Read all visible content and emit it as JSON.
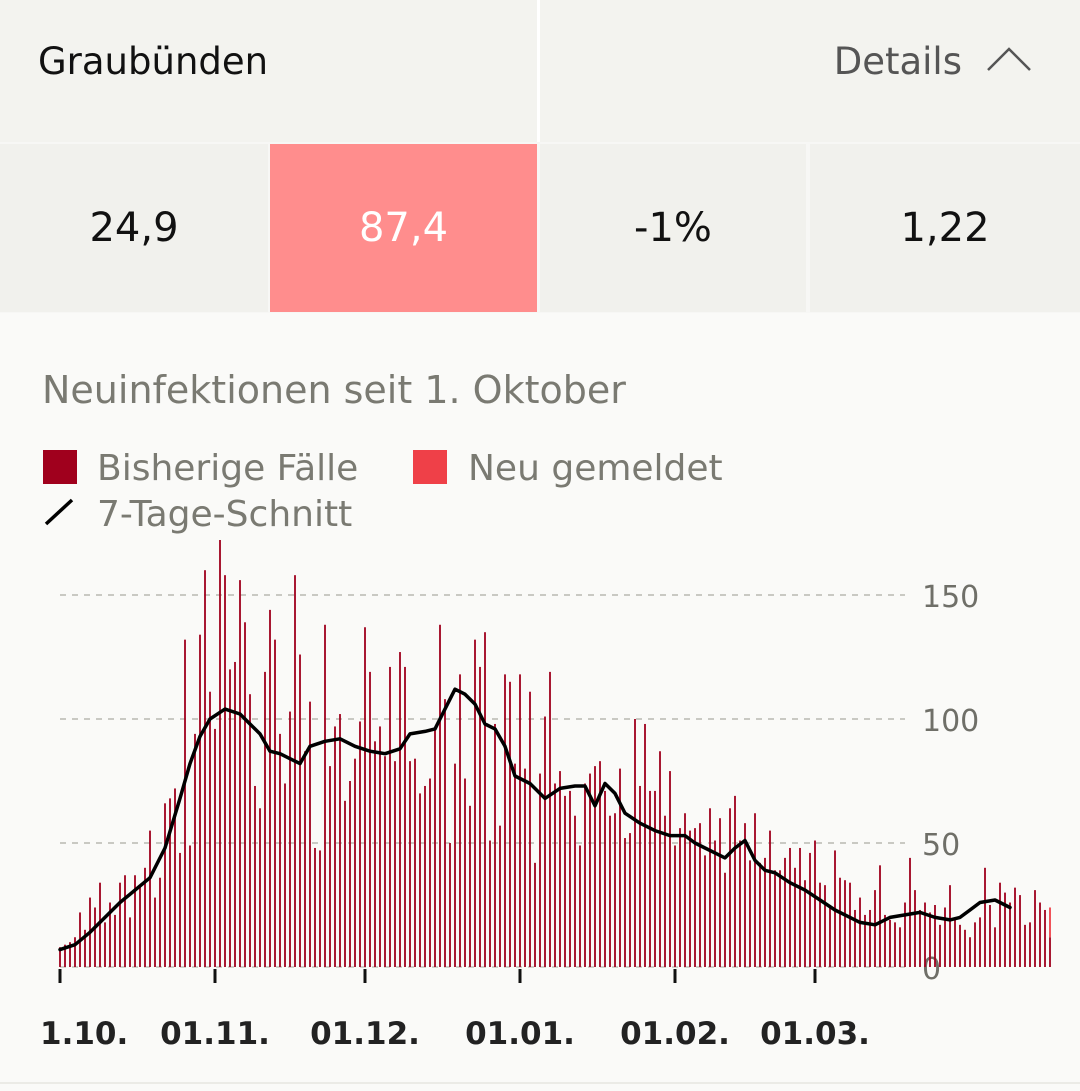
{
  "header": {
    "region": "Graubünden",
    "details_label": "Details"
  },
  "metrics": [
    {
      "value": "24,9",
      "highlight": false
    },
    {
      "value": "87,4",
      "highlight": true,
      "color": "#ff8d8d"
    },
    {
      "value": "-1%",
      "highlight": false
    },
    {
      "value": "1,22",
      "highlight": false
    }
  ],
  "icons": {
    "details_toggle": "chevron-up-icon"
  },
  "colors": {
    "bars_existing": "#a0001d",
    "bars_new": "#ef4048",
    "average_line": "#000000"
  },
  "chart_data": {
    "type": "bar",
    "title": "Neuinfektionen seit 1. Oktober",
    "legend": [
      {
        "label": "Bisherige Fälle",
        "kind": "bar",
        "color": "#a0001d"
      },
      {
        "label": "Neu gemeldet",
        "kind": "bar",
        "color": "#ef4048"
      },
      {
        "label": "7-Tage-Schnitt",
        "kind": "line",
        "color": "#000000"
      }
    ],
    "x_start": "2020-10-01",
    "xticks": [
      {
        "label": "1.10.",
        "date": "2020-10-01"
      },
      {
        "label": "01.11.",
        "date": "2020-11-01"
      },
      {
        "label": "01.12.",
        "date": "2020-12-01"
      },
      {
        "label": "01.01.",
        "date": "2021-01-01"
      },
      {
        "label": "01.02.",
        "date": "2021-02-01"
      },
      {
        "label": "01.03.",
        "date": "2021-03-01"
      }
    ],
    "yticks": [
      0,
      50,
      100,
      150
    ],
    "ylim": [
      0,
      165
    ],
    "grid": true,
    "legend_position": "top-left",
    "series": [
      {
        "name": "Bisherige Fälle",
        "values": [
          8,
          9,
          10,
          12,
          22,
          15,
          28,
          24,
          34,
          18,
          26,
          21,
          34,
          37,
          20,
          37,
          33,
          40,
          55,
          28,
          36,
          66,
          68,
          72,
          46,
          132,
          49,
          94,
          134,
          160,
          111,
          96,
          173,
          158,
          120,
          123,
          156,
          139,
          110,
          73,
          64,
          119,
          144,
          132,
          94,
          74,
          103,
          158,
          126,
          87,
          107,
          48,
          47,
          138,
          81,
          97,
          102,
          67,
          75,
          84,
          99,
          137,
          119,
          91,
          97,
          85,
          121,
          83,
          127,
          121,
          83,
          84,
          70,
          73,
          76,
          96,
          138,
          108,
          50,
          82,
          118,
          76,
          65,
          132,
          121,
          135,
          51,
          98,
          57,
          118,
          115,
          82,
          118,
          80,
          111,
          42,
          78,
          101,
          119,
          74,
          79,
          69,
          71,
          61,
          49,
          74,
          78,
          81,
          83,
          71,
          61,
          62,
          80,
          52,
          54,
          100,
          73,
          98,
          71,
          71,
          87,
          61,
          79,
          49,
          56,
          62,
          55,
          56,
          58,
          45,
          64,
          51,
          60,
          38,
          64,
          69,
          51,
          58,
          43,
          62,
          42,
          44,
          55,
          39,
          39,
          44,
          48,
          40,
          48,
          35,
          46,
          51,
          34,
          33,
          25,
          47,
          36,
          35,
          34,
          23,
          28,
          21,
          23,
          31,
          41,
          21,
          19,
          18,
          16,
          26,
          44,
          31,
          23,
          26,
          22,
          25,
          17,
          24,
          33,
          19,
          17,
          15,
          12,
          18,
          20,
          40,
          25,
          16,
          34,
          30,
          26,
          32,
          29,
          17,
          18,
          31,
          26,
          23,
          12
        ],
        "color": "#a0001d"
      },
      {
        "name": "Neu gemeldet",
        "values": [
          0,
          0,
          0,
          0,
          0,
          0,
          0,
          0,
          0,
          0,
          0,
          0,
          0,
          0,
          0,
          0,
          0,
          0,
          0,
          0,
          0,
          0,
          0,
          0,
          0,
          0,
          0,
          0,
          0,
          0,
          0,
          0,
          0,
          0,
          0,
          0,
          0,
          0,
          0,
          0,
          0,
          0,
          0,
          0,
          0,
          0,
          0,
          0,
          0,
          0,
          0,
          0,
          0,
          0,
          0,
          0,
          0,
          0,
          0,
          0,
          0,
          0,
          0,
          0,
          0,
          0,
          0,
          0,
          0,
          0,
          0,
          0,
          0,
          0,
          0,
          0,
          0,
          0,
          0,
          0,
          0,
          0,
          0,
          0,
          0,
          0,
          0,
          0,
          0,
          0,
          0,
          0,
          0,
          0,
          0,
          0,
          0,
          0,
          0,
          0,
          0,
          0,
          0,
          0,
          0,
          0,
          0,
          0,
          0,
          0,
          0,
          0,
          0,
          0,
          0,
          0,
          0,
          0,
          0,
          0,
          0,
          0,
          0,
          0,
          0,
          0,
          0,
          0,
          0,
          0,
          0,
          0,
          0,
          0,
          0,
          0,
          0,
          0,
          0,
          0,
          0,
          0,
          0,
          0,
          0,
          0,
          0,
          0,
          0,
          0,
          0,
          0,
          0,
          0,
          0,
          0,
          0,
          0,
          0,
          0,
          0,
          0,
          0,
          0,
          0,
          0,
          0,
          0,
          0,
          0,
          0,
          0,
          0,
          0,
          0,
          0,
          0,
          0,
          0,
          0,
          0,
          0,
          0,
          0,
          0,
          0,
          0,
          0,
          0,
          0,
          0,
          0,
          0,
          0,
          0,
          0,
          0,
          0,
          12
        ],
        "color": "#ef4048"
      },
      {
        "name": "7-Tage-Schnitt",
        "type": "line",
        "color": "#000000",
        "points": [
          [
            0,
            7
          ],
          [
            3,
            9
          ],
          [
            6,
            14
          ],
          [
            9,
            20
          ],
          [
            12,
            26
          ],
          [
            15,
            31
          ],
          [
            18,
            36
          ],
          [
            21,
            48
          ],
          [
            24,
            68
          ],
          [
            26,
            82
          ],
          [
            28,
            93
          ],
          [
            30,
            100
          ],
          [
            33,
            104
          ],
          [
            36,
            102
          ],
          [
            38,
            98
          ],
          [
            40,
            94
          ],
          [
            42,
            87
          ],
          [
            44,
            86
          ],
          [
            46,
            84
          ],
          [
            48,
            82
          ],
          [
            50,
            89
          ],
          [
            53,
            91
          ],
          [
            56,
            92
          ],
          [
            59,
            89
          ],
          [
            62,
            87
          ],
          [
            65,
            86
          ],
          [
            68,
            88
          ],
          [
            70,
            94
          ],
          [
            73,
            95
          ],
          [
            75,
            96
          ],
          [
            77,
            104
          ],
          [
            79,
            112
          ],
          [
            81,
            110
          ],
          [
            83,
            106
          ],
          [
            85,
            98
          ],
          [
            87,
            96
          ],
          [
            89,
            89
          ],
          [
            91,
            77
          ],
          [
            94,
            74
          ],
          [
            97,
            68
          ],
          [
            100,
            72
          ],
          [
            103,
            73
          ],
          [
            105,
            73
          ],
          [
            107,
            65
          ],
          [
            109,
            74
          ],
          [
            111,
            70
          ],
          [
            113,
            62
          ],
          [
            116,
            58
          ],
          [
            119,
            55
          ],
          [
            122,
            53
          ],
          [
            125,
            53
          ],
          [
            127,
            50
          ],
          [
            129,
            48
          ],
          [
            131,
            46
          ],
          [
            133,
            44
          ],
          [
            135,
            48
          ],
          [
            137,
            51
          ],
          [
            139,
            43
          ],
          [
            141,
            39
          ],
          [
            143,
            38
          ],
          [
            146,
            34
          ],
          [
            149,
            31
          ],
          [
            152,
            27
          ],
          [
            155,
            23
          ],
          [
            158,
            20
          ],
          [
            160,
            18
          ],
          [
            163,
            17
          ],
          [
            166,
            20
          ],
          [
            169,
            21
          ],
          [
            172,
            22
          ],
          [
            175,
            20
          ],
          [
            178,
            19
          ],
          [
            180,
            20
          ],
          [
            182,
            23
          ],
          [
            184,
            26
          ],
          [
            187,
            27
          ],
          [
            190,
            24
          ]
        ]
      }
    ]
  }
}
